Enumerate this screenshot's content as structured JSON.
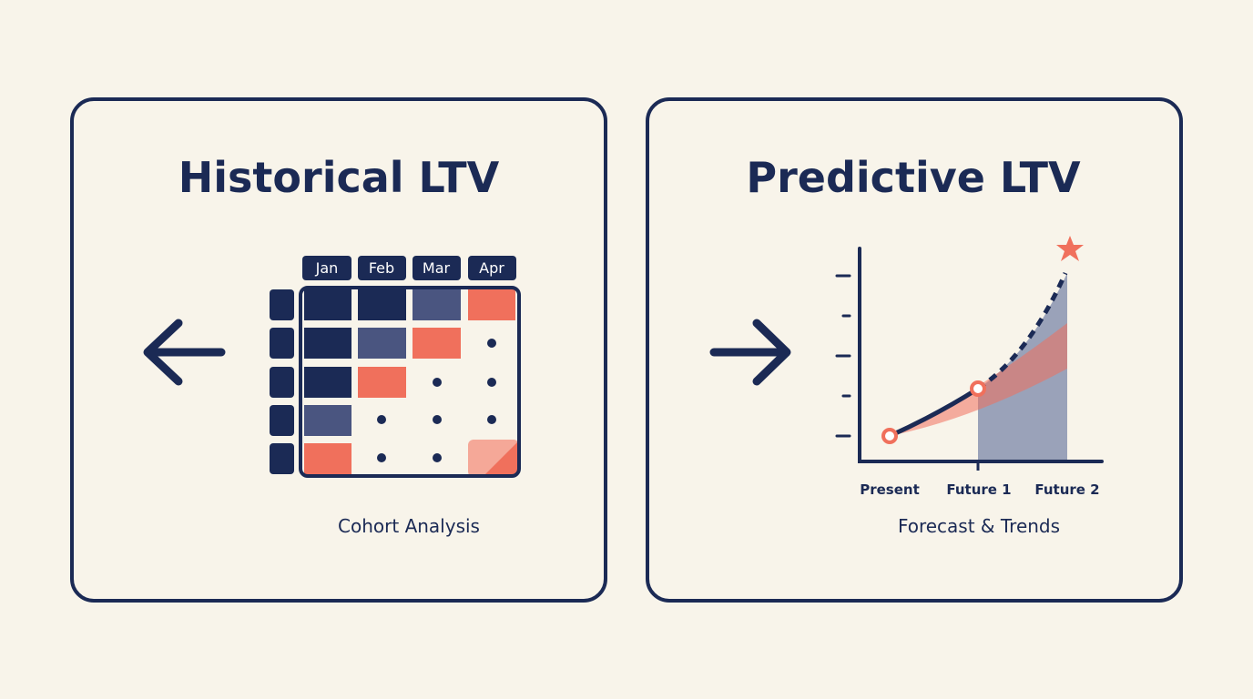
{
  "panels": [
    {
      "title": "Historical LTV",
      "months": [
        "Jan",
        "Feb",
        "Mar",
        "Apr"
      ],
      "caption": "Cohort Analysis"
    },
    {
      "title": "Predictive LTV",
      "x_labels": [
        "Present",
        "Future 1",
        "Future 2"
      ],
      "caption": "Forecast & Trends"
    }
  ]
}
